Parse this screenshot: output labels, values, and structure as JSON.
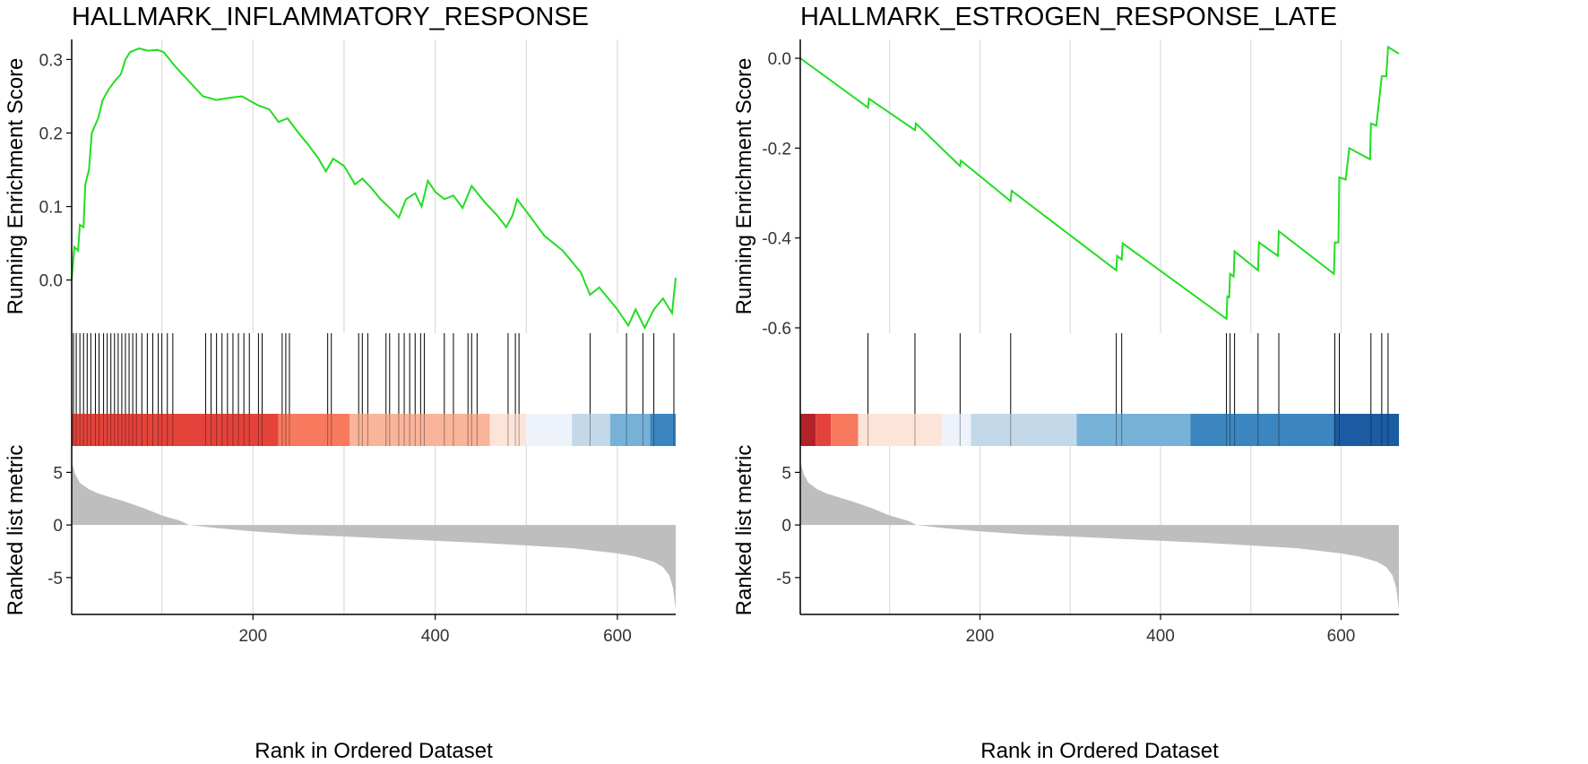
{
  "colors": {
    "curve": "#22dd22",
    "grid": "#dcdcdc",
    "axis": "#000000",
    "metric_fill": "#bebebe",
    "hit_line": "#000000"
  },
  "chart_data": [
    {
      "type": "line",
      "title": "HALLMARK_INFLAMMATORY_RESPONSE",
      "xlabel": "Rank in Ordered Dataset",
      "ylabel_top": "Running Enrichment Score",
      "ylabel_bottom": "Ranked list metric",
      "xlim": [
        1,
        664
      ],
      "x_ticks": [
        200,
        400,
        600
      ],
      "x_tick_labels": [
        "200",
        "400",
        "600"
      ],
      "es_ylim": [
        -0.065,
        0.32
      ],
      "es_ticks": [
        0.0,
        0.1,
        0.2,
        0.3
      ],
      "es_tick_labels": [
        "0.0",
        "0.1",
        "0.2",
        "0.3"
      ],
      "metric_ylim": [
        -8.5,
        7.5
      ],
      "metric_ticks": [
        5,
        0,
        -5
      ],
      "metric_tick_labels": [
        "5",
        "0",
        "-5"
      ],
      "running_es": [
        [
          1,
          0.0
        ],
        [
          4,
          0.045
        ],
        [
          8,
          0.04
        ],
        [
          10,
          0.075
        ],
        [
          14,
          0.072
        ],
        [
          16,
          0.13
        ],
        [
          20,
          0.15
        ],
        [
          23,
          0.2
        ],
        [
          30,
          0.22
        ],
        [
          35,
          0.245
        ],
        [
          42,
          0.26
        ],
        [
          48,
          0.27
        ],
        [
          55,
          0.28
        ],
        [
          60,
          0.3
        ],
        [
          65,
          0.31
        ],
        [
          75,
          0.315
        ],
        [
          85,
          0.312
        ],
        [
          95,
          0.313
        ],
        [
          102,
          0.31
        ],
        [
          115,
          0.29
        ],
        [
          130,
          0.27
        ],
        [
          145,
          0.25
        ],
        [
          160,
          0.245
        ],
        [
          175,
          0.248
        ],
        [
          188,
          0.25
        ],
        [
          195,
          0.245
        ],
        [
          205,
          0.238
        ],
        [
          218,
          0.232
        ],
        [
          228,
          0.215
        ],
        [
          238,
          0.22
        ],
        [
          250,
          0.2
        ],
        [
          260,
          0.185
        ],
        [
          272,
          0.165
        ],
        [
          280,
          0.148
        ],
        [
          288,
          0.165
        ],
        [
          300,
          0.155
        ],
        [
          312,
          0.13
        ],
        [
          320,
          0.138
        ],
        [
          330,
          0.125
        ],
        [
          340,
          0.11
        ],
        [
          350,
          0.098
        ],
        [
          360,
          0.085
        ],
        [
          368,
          0.11
        ],
        [
          378,
          0.118
        ],
        [
          385,
          0.1
        ],
        [
          392,
          0.135
        ],
        [
          400,
          0.12
        ],
        [
          410,
          0.11
        ],
        [
          420,
          0.115
        ],
        [
          430,
          0.098
        ],
        [
          440,
          0.128
        ],
        [
          455,
          0.105
        ],
        [
          468,
          0.088
        ],
        [
          478,
          0.072
        ],
        [
          485,
          0.088
        ],
        [
          490,
          0.11
        ],
        [
          505,
          0.085
        ],
        [
          520,
          0.06
        ],
        [
          540,
          0.04
        ],
        [
          560,
          0.01
        ],
        [
          570,
          -0.02
        ],
        [
          580,
          -0.01
        ],
        [
          600,
          -0.04
        ],
        [
          612,
          -0.062
        ],
        [
          620,
          -0.04
        ],
        [
          630,
          -0.065
        ],
        [
          640,
          -0.04
        ],
        [
          650,
          -0.025
        ],
        [
          660,
          -0.045
        ],
        [
          664,
          0.003
        ]
      ],
      "hits": [
        3,
        6,
        10,
        14,
        18,
        22,
        27,
        31,
        36,
        40,
        44,
        48,
        52,
        56,
        60,
        64,
        68,
        72,
        78,
        84,
        90,
        96,
        100,
        106,
        112,
        148,
        154,
        160,
        166,
        172,
        178,
        184,
        190,
        196,
        206,
        210,
        232,
        236,
        240,
        282,
        286,
        316,
        320,
        326,
        346,
        350,
        360,
        366,
        372,
        378,
        384,
        388,
        410,
        420,
        436,
        440,
        446,
        480,
        488,
        492,
        570,
        610,
        628,
        640,
        662
      ],
      "color_bands": [
        {
          "from": 1,
          "to": 228,
          "color": "#e3433b"
        },
        {
          "from": 228,
          "to": 306,
          "color": "#f77a5f"
        },
        {
          "from": 306,
          "to": 460,
          "color": "#f9b49a"
        },
        {
          "from": 460,
          "to": 500,
          "color": "#fde4d9"
        },
        {
          "from": 500,
          "to": 550,
          "color": "#eef3fb"
        },
        {
          "from": 550,
          "to": 592,
          "color": "#c3d9ea"
        },
        {
          "from": 592,
          "to": 636,
          "color": "#78b1d8"
        },
        {
          "from": 636,
          "to": 664,
          "color": "#3b86c0"
        }
      ],
      "ranked_metric": [
        [
          1,
          6.0
        ],
        [
          5,
          4.8
        ],
        [
          10,
          4.0
        ],
        [
          20,
          3.4
        ],
        [
          30,
          3.0
        ],
        [
          45,
          2.6
        ],
        [
          60,
          2.2
        ],
        [
          80,
          1.6
        ],
        [
          100,
          0.9
        ],
        [
          120,
          0.4
        ],
        [
          130,
          0.0
        ],
        [
          160,
          -0.3
        ],
        [
          200,
          -0.6
        ],
        [
          250,
          -0.9
        ],
        [
          300,
          -1.1
        ],
        [
          350,
          -1.3
        ],
        [
          400,
          -1.5
        ],
        [
          450,
          -1.7
        ],
        [
          500,
          -1.95
        ],
        [
          550,
          -2.2
        ],
        [
          580,
          -2.5
        ],
        [
          600,
          -2.7
        ],
        [
          620,
          -3.0
        ],
        [
          640,
          -3.5
        ],
        [
          650,
          -4.0
        ],
        [
          657,
          -4.8
        ],
        [
          661,
          -6.0
        ],
        [
          664,
          -8.0
        ]
      ]
    },
    {
      "type": "line",
      "title": "HALLMARK_ESTROGEN_RESPONSE_LATE",
      "xlabel": "Rank in Ordered Dataset",
      "ylabel_top": "Running Enrichment Score",
      "ylabel_bottom": "Ranked list metric",
      "xlim": [
        1,
        664
      ],
      "x_ticks": [
        200,
        400,
        600
      ],
      "x_tick_labels": [
        "200",
        "400",
        "600"
      ],
      "es_ylim": [
        -0.6,
        0.03
      ],
      "es_ticks": [
        0.0,
        -0.2,
        -0.4,
        -0.6
      ],
      "es_tick_labels": [
        "0.0",
        "-0.2",
        "-0.4",
        "-0.6"
      ],
      "metric_ylim": [
        -8.5,
        7.5
      ],
      "metric_ticks": [
        5,
        0,
        -5
      ],
      "metric_tick_labels": [
        "5",
        "0",
        "-5"
      ],
      "running_es": [
        [
          1,
          0.0
        ],
        [
          76,
          -0.11
        ],
        [
          77,
          -0.09
        ],
        [
          128,
          -0.16
        ],
        [
          129,
          -0.145
        ],
        [
          178,
          -0.24
        ],
        [
          179,
          -0.228
        ],
        [
          234,
          -0.318
        ],
        [
          235,
          -0.295
        ],
        [
          351,
          -0.472
        ],
        [
          352,
          -0.44
        ],
        [
          357,
          -0.448
        ],
        [
          358,
          -0.412
        ],
        [
          473,
          -0.58
        ],
        [
          474,
          -0.53
        ],
        [
          476,
          -0.532
        ],
        [
          477,
          -0.48
        ],
        [
          481,
          -0.486
        ],
        [
          482,
          -0.43
        ],
        [
          508,
          -0.472
        ],
        [
          509,
          -0.41
        ],
        [
          530,
          -0.44
        ],
        [
          531,
          -0.385
        ],
        [
          592,
          -0.48
        ],
        [
          593,
          -0.41
        ],
        [
          597,
          -0.41
        ],
        [
          598,
          -0.265
        ],
        [
          605,
          -0.27
        ],
        [
          609,
          -0.2
        ],
        [
          632,
          -0.225
        ],
        [
          633,
          -0.145
        ],
        [
          639,
          -0.15
        ],
        [
          645,
          -0.04
        ],
        [
          650,
          -0.04
        ],
        [
          652,
          0.025
        ],
        [
          664,
          0.01
        ]
      ],
      "hits": [
        76,
        128,
        178,
        234,
        351,
        357,
        473,
        477,
        482,
        508,
        531,
        593,
        598,
        633,
        645,
        652
      ],
      "color_bands": [
        {
          "from": 1,
          "to": 18,
          "color": "#b22229"
        },
        {
          "from": 18,
          "to": 35,
          "color": "#e3433b"
        },
        {
          "from": 35,
          "to": 65,
          "color": "#f77a5f"
        },
        {
          "from": 65,
          "to": 158,
          "color": "#fde4d9"
        },
        {
          "from": 158,
          "to": 190,
          "color": "#eef3fb"
        },
        {
          "from": 190,
          "to": 307,
          "color": "#c3d9ea"
        },
        {
          "from": 307,
          "to": 433,
          "color": "#78b1d8"
        },
        {
          "from": 433,
          "to": 592,
          "color": "#3b86c0"
        },
        {
          "from": 592,
          "to": 664,
          "color": "#1b5ba1"
        }
      ],
      "ranked_metric": [
        [
          1,
          6.0
        ],
        [
          5,
          4.8
        ],
        [
          10,
          4.0
        ],
        [
          20,
          3.4
        ],
        [
          30,
          3.0
        ],
        [
          45,
          2.6
        ],
        [
          60,
          2.2
        ],
        [
          80,
          1.6
        ],
        [
          100,
          0.9
        ],
        [
          120,
          0.4
        ],
        [
          130,
          0.0
        ],
        [
          160,
          -0.3
        ],
        [
          200,
          -0.6
        ],
        [
          250,
          -0.9
        ],
        [
          300,
          -1.1
        ],
        [
          350,
          -1.3
        ],
        [
          400,
          -1.5
        ],
        [
          450,
          -1.7
        ],
        [
          500,
          -1.95
        ],
        [
          550,
          -2.2
        ],
        [
          580,
          -2.5
        ],
        [
          600,
          -2.7
        ],
        [
          620,
          -3.0
        ],
        [
          640,
          -3.5
        ],
        [
          650,
          -4.0
        ],
        [
          657,
          -4.8
        ],
        [
          661,
          -6.0
        ],
        [
          664,
          -8.0
        ]
      ]
    }
  ]
}
